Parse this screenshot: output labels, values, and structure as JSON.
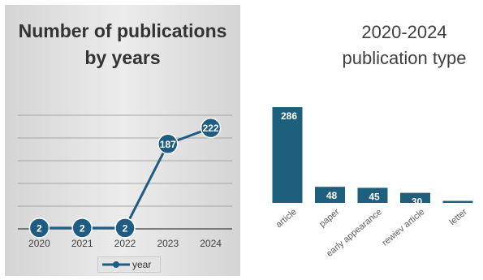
{
  "chart_data": [
    {
      "type": "line",
      "title": "Number of publications by years",
      "x": [
        "2020",
        "2021",
        "2022",
        "2023",
        "2024"
      ],
      "series": [
        {
          "name": "year",
          "values": [
            2,
            2,
            2,
            187,
            222
          ]
        }
      ],
      "grid": true,
      "legend": "bottom",
      "colors": {
        "line": "#1f5c84",
        "marker": "#1f5c84",
        "label": "#ffffff"
      }
    },
    {
      "type": "bar",
      "title": "2020-2024 publication type",
      "categories": [
        "article",
        "paper",
        "early appearance",
        "rewiev article",
        "letter"
      ],
      "values": [
        286,
        48,
        45,
        30,
        6
      ],
      "colors": {
        "bar": "#1e5f7e",
        "label": "#ffffff"
      }
    }
  ]
}
